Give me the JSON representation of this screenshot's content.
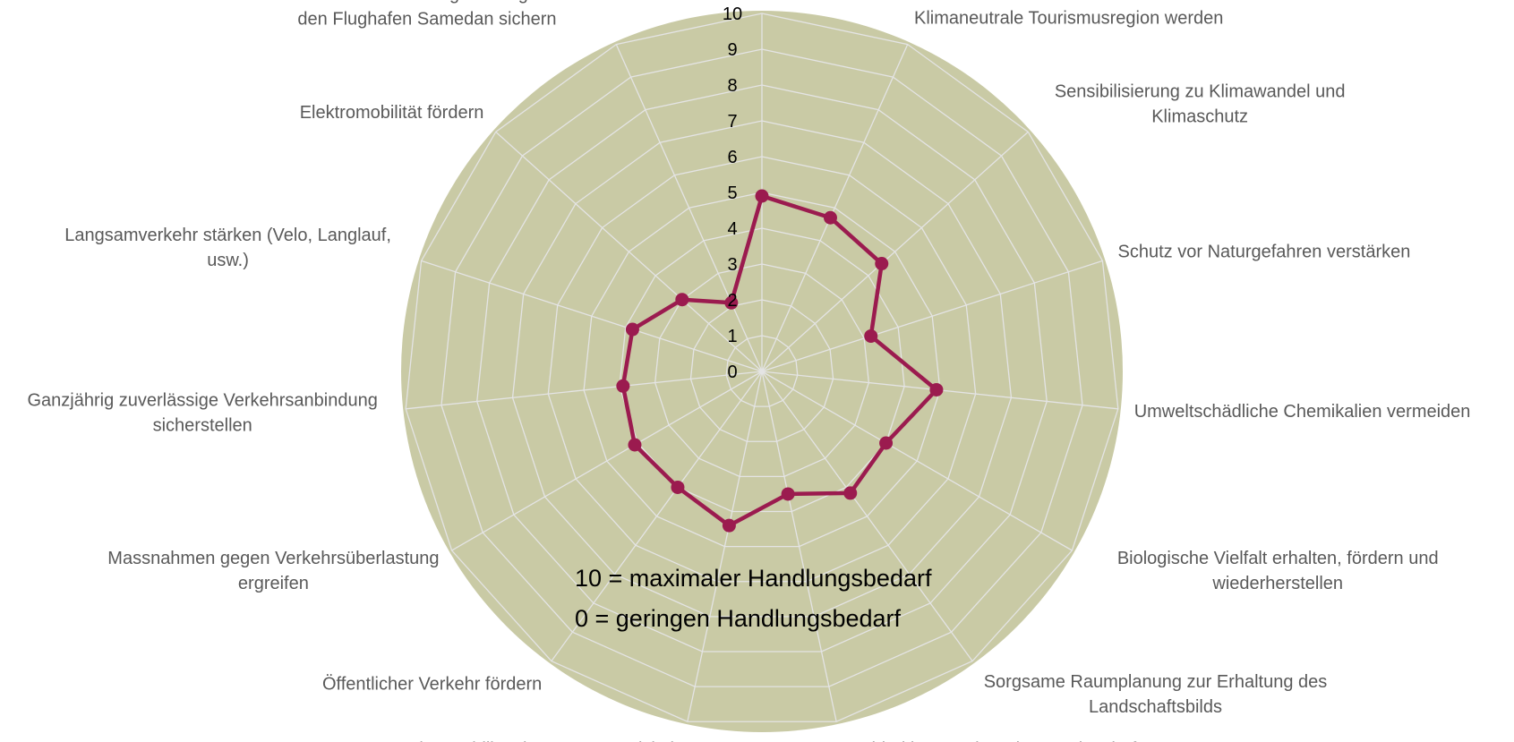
{
  "chart_data": {
    "type": "radar",
    "categories": [
      null,
      "Klimaneutrale Tourismusregion werden",
      "Sensibilisierung zu Klimawandel und\nKlimaschutz",
      "Schutz vor Naturgefahren verstärken",
      "Umweltschädliche Chemikalien vermeiden",
      "Biologische Vielfalt erhalten, fördern und\nwiederherstellen",
      "Sorgsame Raumplanung zur Erhaltung des\nLandschaftsbilds",
      "Nachhaltige Land- und Forstwirtschaft",
      "Innovative Mobilitätskonzepte entwickeln",
      "Öffentlicher Verkehr fördern",
      "Massnahmen gegen Verkehrsüberlastung\nergreifen",
      "Ganzjährig zuverlässige Verkehrsanbindung\nsicherstellen",
      "Langsamverkehr stärken (Velo, Langlauf,\nusw.)",
      "Elektromobilität fördern",
      "Internationale Anbindung der Region über\nden Flughafen Samedan sichern"
    ],
    "values": [
      4.9,
      4.7,
      4.5,
      3.2,
      4.9,
      4.0,
      4.2,
      3.5,
      4.4,
      4.0,
      4.1,
      3.9,
      3.8,
      3.0,
      2.1
    ],
    "color": "#9b1b4f",
    "ylim": [
      0,
      10
    ],
    "yticks": [
      0,
      1,
      2,
      3,
      4,
      5,
      6,
      7,
      8,
      9,
      10
    ],
    "grid": true,
    "annotations": [
      "10 = maximaler Handlungsbedarf",
      "0 = geringen Handlungsbedarf"
    ]
  }
}
